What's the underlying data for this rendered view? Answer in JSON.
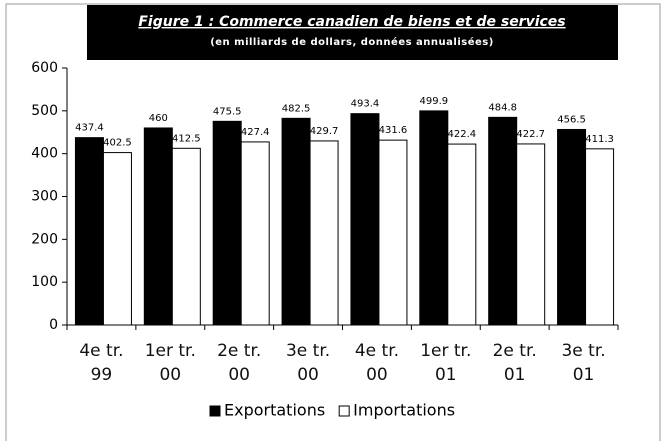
{
  "chart_data": {
    "type": "bar",
    "title": "Figure 1 : Commerce canadien de biens et de services",
    "subtitle": "(en milliards de dollars, données annualisées)",
    "categories": [
      "4e tr. 99",
      "1er tr. 00",
      "2e tr. 00",
      "3e tr. 00",
      "4e tr. 00",
      "1er tr. 01",
      "2e tr. 01",
      "3e tr. 01"
    ],
    "series": [
      {
        "name": "Exportations",
        "color": "#000000",
        "values": [
          437.4,
          460,
          475.5,
          482.5,
          493.4,
          499.9,
          484.8,
          456.5
        ]
      },
      {
        "name": "Importations",
        "color": "#ffffff",
        "values": [
          402.5,
          412.5,
          427.4,
          429.7,
          431.6,
          422.4,
          422.7,
          411.3
        ]
      }
    ],
    "ylim": [
      0,
      600
    ],
    "yticks": [
      0,
      100,
      200,
      300,
      400,
      500,
      600
    ],
    "grid": false
  }
}
